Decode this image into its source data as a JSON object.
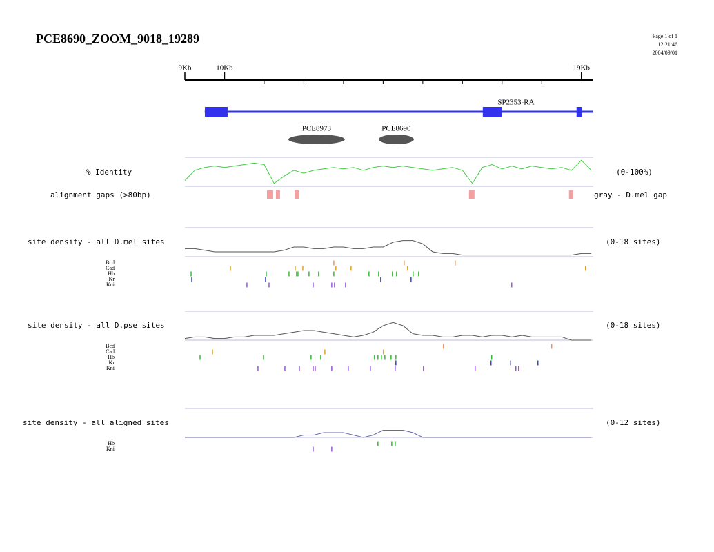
{
  "header": {
    "title": "PCE8690_ZOOM_9018_19289",
    "page": "Page 1 of 1",
    "time": "12:21:46",
    "date": "2004/09/01"
  },
  "ruler": {
    "xlim": [
      9000,
      19300
    ],
    "ticks": [
      {
        "value": 9000,
        "label": "9Kb"
      },
      {
        "value": 10000,
        "label": "10Kb"
      },
      {
        "value": 19000,
        "label": "19Kb"
      }
    ],
    "minor_ticks": [
      11000,
      12000,
      13000,
      14000,
      15000,
      16000,
      17000,
      18000
    ]
  },
  "gene": {
    "name": "SP2353-RA",
    "span": [
      9500,
      19300
    ],
    "exons": [
      [
        9504,
        10078
      ],
      [
        16513,
        16999
      ],
      [
        18878,
        19017
      ]
    ],
    "color": "#3333ee"
  },
  "predictions": [
    {
      "name": "PCE8973",
      "span": [
        11609,
        13035
      ]
    },
    {
      "name": "PCE8690",
      "span": [
        13887,
        14774
      ]
    }
  ],
  "identity": {
    "label": "% Identity",
    "range_label": "(0-100%)",
    "ylim": [
      0,
      100
    ],
    "color": "#44cc44",
    "x": [
      9000,
      9250,
      9500,
      9750,
      10000,
      10250,
      10500,
      10750,
      11000,
      11250,
      11500,
      11750,
      12000,
      12250,
      12500,
      12750,
      13000,
      13250,
      13500,
      13750,
      14000,
      14250,
      14500,
      14750,
      15000,
      15250,
      15500,
      15750,
      16000,
      16250,
      16500,
      16750,
      17000,
      17250,
      17500,
      17750,
      18000,
      18250,
      18500,
      18750,
      19000,
      19250
    ],
    "values": [
      20,
      55,
      65,
      70,
      65,
      70,
      75,
      80,
      75,
      10,
      35,
      55,
      45,
      55,
      60,
      65,
      60,
      65,
      55,
      65,
      70,
      65,
      70,
      65,
      60,
      55,
      60,
      65,
      55,
      10,
      65,
      75,
      60,
      70,
      60,
      70,
      65,
      60,
      65,
      55,
      90,
      55
    ]
  },
  "gaps": {
    "label": "alignment gaps (>80bp)",
    "note": "gray - D.mel gap",
    "color": "#f4a0a0",
    "spans": [
      [
        11070,
        11226
      ],
      [
        11296,
        11400
      ],
      [
        11765,
        11887
      ],
      [
        16165,
        16304
      ],
      [
        18687,
        18791
      ]
    ]
  },
  "density_tracks": [
    {
      "label": "site density - all D.mel sites",
      "range_label": "(0-18 sites)",
      "ylim": [
        0,
        18
      ],
      "color": "#555555",
      "x": [
        9000,
        9250,
        9500,
        9750,
        10000,
        10250,
        10500,
        10750,
        11000,
        11250,
        11500,
        11750,
        12000,
        12250,
        12500,
        12750,
        13000,
        13250,
        13500,
        13750,
        14000,
        14250,
        14500,
        14750,
        15000,
        15250,
        15500,
        15750,
        16000,
        16250,
        16500,
        16750,
        17000,
        17250,
        17500,
        17750,
        18000,
        18250,
        18500,
        18750,
        19000,
        19250
      ],
      "values": [
        5,
        5,
        4,
        3,
        3,
        3,
        3,
        3,
        3,
        3,
        4,
        6,
        6,
        5,
        5,
        6,
        6,
        5,
        5,
        6,
        6,
        9,
        10,
        10,
        8,
        3,
        2,
        2,
        1,
        1,
        1,
        1,
        1,
        1,
        1,
        1,
        1,
        1,
        1,
        1,
        2,
        2
      ],
      "sites": [
        {
          "name": "Bcd",
          "color": "#f09060",
          "x": [
            12756,
            14530,
            15817
          ]
        },
        {
          "name": "Cad",
          "color": "#e0a020",
          "x": [
            10148,
            11782,
            11974,
            12808,
            13191,
            14617,
            19104
          ]
        },
        {
          "name": "Hb",
          "color": "#33bb33",
          "x": [
            9157,
            11052,
            11626,
            11817,
            11852,
            12130,
            12373,
            12756,
            13643,
            13887,
            14234,
            14339,
            14756,
            14895
          ]
        },
        {
          "name": "Kr",
          "color": "#3344cc",
          "x": [
            9174,
            11035,
            13939,
            14704
          ]
        },
        {
          "name": "Kni",
          "color": "#9955dd",
          "x": [
            10565,
            11122,
            12235,
            12704,
            12774,
            13052,
            17243
          ]
        }
      ]
    },
    {
      "label": "site density - all D.pse sites",
      "range_label": "(0-18 sites)",
      "ylim": [
        0,
        18
      ],
      "color": "#555555",
      "x": [
        9000,
        9250,
        9500,
        9750,
        10000,
        10250,
        10500,
        10750,
        11000,
        11250,
        11500,
        11750,
        12000,
        12250,
        12500,
        12750,
        13000,
        13250,
        13500,
        13750,
        14000,
        14250,
        14500,
        14750,
        15000,
        15250,
        15500,
        15750,
        16000,
        16250,
        16500,
        16750,
        17000,
        17250,
        17500,
        17750,
        18000,
        18250,
        18500,
        18750,
        19000,
        19250
      ],
      "values": [
        1,
        2,
        2,
        1,
        1,
        2,
        2,
        3,
        3,
        3,
        4,
        5,
        6,
        6,
        5,
        4,
        3,
        2,
        3,
        5,
        9,
        11,
        9,
        4,
        3,
        3,
        2,
        2,
        3,
        3,
        2,
        3,
        3,
        2,
        3,
        2,
        2,
        2,
        2,
        0,
        0,
        0
      ],
      "sites": [
        {
          "name": "Bcd",
          "color": "#f09060",
          "x": [
            15521,
            18251
          ]
        },
        {
          "name": "Cad",
          "color": "#e0a020",
          "x": [
            9696,
            12530,
            14008
          ]
        },
        {
          "name": "Hb",
          "color": "#33bb33",
          "x": [
            9383,
            10983,
            12182,
            12426,
            13782,
            13869,
            13956,
            14043,
            14200,
            14321,
            16738
          ]
        },
        {
          "name": "Kr",
          "color": "#3344cc",
          "x": [
            14321,
            16721,
            17208,
            17904
          ]
        },
        {
          "name": "Kni",
          "color": "#9955dd",
          "x": [
            10843,
            11522,
            11887,
            12235,
            12287,
            12704,
            13121,
            13678,
            14304,
            15017,
            16321,
            17347,
            17417
          ]
        }
      ]
    },
    {
      "label": "site density - all aligned sites",
      "range_label": "(0-12 sites)",
      "ylim": [
        0,
        12
      ],
      "color": "#6666aa",
      "x": [
        9000,
        9250,
        9500,
        9750,
        10000,
        10250,
        10500,
        10750,
        11000,
        11250,
        11500,
        11750,
        12000,
        12250,
        12500,
        12750,
        13000,
        13250,
        13500,
        13750,
        14000,
        14250,
        14500,
        14750,
        15000,
        15250,
        15500,
        15750,
        16000,
        16250,
        16500,
        16750,
        17000,
        17250,
        17500,
        17750,
        18000,
        18250,
        18500,
        18750,
        19000,
        19250
      ],
      "values": [
        0,
        0,
        0,
        0,
        0,
        0,
        0,
        0,
        0,
        0,
        0,
        0,
        1,
        1,
        2,
        2,
        2,
        1,
        0,
        1,
        3,
        3,
        3,
        2,
        0,
        0,
        0,
        0,
        0,
        0,
        0,
        0,
        0,
        0,
        0,
        0,
        0,
        0,
        0,
        0,
        0,
        0
      ],
      "sites": [
        {
          "name": "Hb",
          "color": "#33bb33",
          "x": [
            13869,
            14217,
            14304
          ]
        },
        {
          "name": "Kni",
          "color": "#9955dd",
          "x": [
            12235,
            12704
          ]
        }
      ]
    }
  ]
}
